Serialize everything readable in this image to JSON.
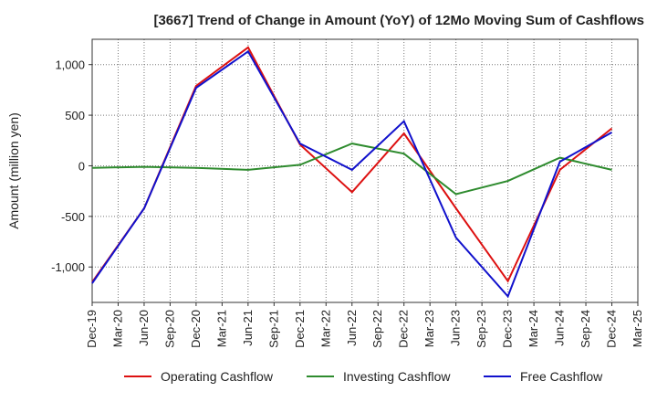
{
  "chart_data": {
    "type": "line",
    "title": "[3667]  Trend of Change in Amount (YoY) of 12Mo Moving Sum of Cashflows",
    "xlabel": "",
    "ylabel": "Amount (million yen)",
    "ylim": [
      -1350,
      1250
    ],
    "yticks": [
      1000,
      500,
      0,
      -500,
      -1000
    ],
    "ytick_labels": [
      "1,000",
      "500",
      "0",
      "-500",
      "-1,000"
    ],
    "grid": true,
    "legend_position": "bottom",
    "categories": [
      "Dec-19",
      "Mar-20",
      "Jun-20",
      "Sep-20",
      "Dec-20",
      "Mar-21",
      "Jun-21",
      "Sep-21",
      "Dec-21",
      "Mar-22",
      "Jun-22",
      "Sep-22",
      "Dec-22",
      "Mar-23",
      "Jun-23",
      "Sep-23",
      "Dec-23",
      "Mar-24",
      "Jun-24",
      "Sep-24",
      "Dec-24",
      "Mar-25"
    ],
    "series": [
      {
        "name": "Operating Cashflow",
        "color": "#dd1111",
        "values": [
          -1150,
          null,
          -420,
          null,
          790,
          null,
          1170,
          null,
          210,
          null,
          -260,
          null,
          320,
          null,
          -420,
          null,
          -1140,
          null,
          -40,
          null,
          370,
          null
        ]
      },
      {
        "name": "Investing Cashflow",
        "color": "#2e8b2e",
        "values": [
          -20,
          null,
          -10,
          null,
          -20,
          null,
          -40,
          null,
          10,
          null,
          220,
          null,
          120,
          null,
          -280,
          null,
          -150,
          null,
          80,
          null,
          -40,
          null
        ]
      },
      {
        "name": "Free Cashflow",
        "color": "#1111cc",
        "values": [
          -1160,
          null,
          -420,
          null,
          770,
          null,
          1130,
          null,
          220,
          null,
          -40,
          null,
          440,
          null,
          -710,
          null,
          -1290,
          null,
          40,
          null,
          330,
          null
        ]
      }
    ]
  }
}
